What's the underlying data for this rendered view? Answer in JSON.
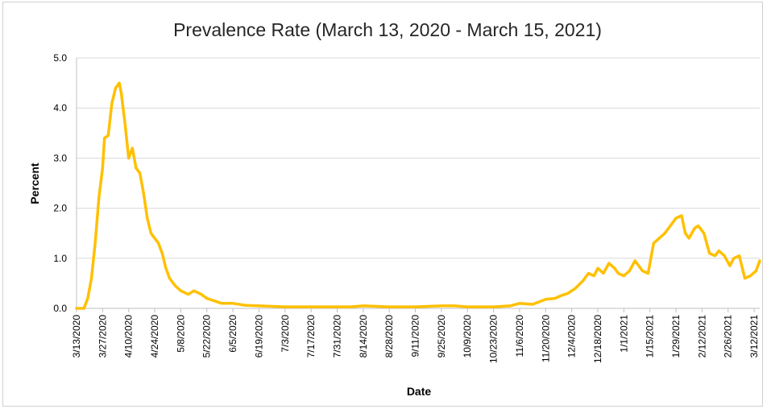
{
  "chart_data": {
    "type": "line",
    "title": "Prevalence Rate (March 13, 2020 - March 15, 2021)",
    "xlabel": "Date",
    "ylabel": "Percent",
    "ylim": [
      0,
      5
    ],
    "yticks": [
      "0.0",
      "1.0",
      "2.0",
      "3.0",
      "4.0",
      "5.0"
    ],
    "grid": true,
    "line_color": "#FFC000",
    "xticks": [
      "3/13/2020",
      "3/27/2020",
      "4/10/2020",
      "4/24/2020",
      "5/8/2020",
      "5/22/2020",
      "6/5/2020",
      "6/19/2020",
      "7/3/2020",
      "7/17/2020",
      "7/31/2020",
      "8/14/2020",
      "8/28/2020",
      "9/11/2020",
      "9/25/2020",
      "10/9/2020",
      "10/23/2020",
      "11/6/2020",
      "11/20/2020",
      "12/4/2020",
      "12/18/2020",
      "1/1/2021",
      "1/15/2021",
      "1/29/2021",
      "2/12/2021",
      "2/26/2021",
      "3/12/2021"
    ],
    "x": [
      "2020-03-13",
      "2020-03-17",
      "2020-03-19",
      "2020-03-21",
      "2020-03-23",
      "2020-03-25",
      "2020-03-27",
      "2020-03-28",
      "2020-03-30",
      "2020-04-01",
      "2020-04-03",
      "2020-04-05",
      "2020-04-06",
      "2020-04-07",
      "2020-04-08",
      "2020-04-10",
      "2020-04-12",
      "2020-04-14",
      "2020-04-16",
      "2020-04-18",
      "2020-04-20",
      "2020-04-22",
      "2020-04-24",
      "2020-04-26",
      "2020-04-28",
      "2020-04-30",
      "2020-05-02",
      "2020-05-05",
      "2020-05-08",
      "2020-05-12",
      "2020-05-15",
      "2020-05-19",
      "2020-05-22",
      "2020-05-26",
      "2020-05-30",
      "2020-06-05",
      "2020-06-12",
      "2020-06-19",
      "2020-07-03",
      "2020-07-17",
      "2020-07-31",
      "2020-08-07",
      "2020-08-14",
      "2020-08-28",
      "2020-09-11",
      "2020-09-25",
      "2020-10-02",
      "2020-10-09",
      "2020-10-23",
      "2020-11-01",
      "2020-11-06",
      "2020-11-13",
      "2020-11-20",
      "2020-11-25",
      "2020-11-28",
      "2020-12-02",
      "2020-12-06",
      "2020-12-10",
      "2020-12-13",
      "2020-12-16",
      "2020-12-18",
      "2020-12-21",
      "2020-12-24",
      "2020-12-27",
      "2020-12-29",
      "2021-01-01",
      "2021-01-04",
      "2021-01-07",
      "2021-01-11",
      "2021-01-14",
      "2021-01-17",
      "2021-01-20",
      "2021-01-23",
      "2021-01-25",
      "2021-01-27",
      "2021-01-29",
      "2021-02-01",
      "2021-02-03",
      "2021-02-05",
      "2021-02-08",
      "2021-02-10",
      "2021-02-13",
      "2021-02-16",
      "2021-02-19",
      "2021-02-21",
      "2021-02-24",
      "2021-02-27",
      "2021-03-01",
      "2021-03-04",
      "2021-03-07",
      "2021-03-10",
      "2021-03-13",
      "2021-03-15"
    ],
    "values": [
      0.0,
      0.0,
      0.2,
      0.6,
      1.3,
      2.2,
      2.8,
      3.4,
      3.45,
      4.1,
      4.4,
      4.5,
      4.3,
      4.0,
      3.7,
      3.0,
      3.2,
      2.8,
      2.7,
      2.3,
      1.8,
      1.5,
      1.4,
      1.3,
      1.1,
      0.8,
      0.6,
      0.45,
      0.35,
      0.28,
      0.35,
      0.28,
      0.2,
      0.15,
      0.1,
      0.1,
      0.06,
      0.05,
      0.03,
      0.03,
      0.03,
      0.03,
      0.05,
      0.03,
      0.03,
      0.05,
      0.05,
      0.03,
      0.03,
      0.05,
      0.1,
      0.08,
      0.18,
      0.2,
      0.25,
      0.3,
      0.4,
      0.55,
      0.7,
      0.65,
      0.8,
      0.7,
      0.9,
      0.8,
      0.7,
      0.65,
      0.75,
      0.95,
      0.75,
      0.7,
      1.3,
      1.4,
      1.5,
      1.6,
      1.7,
      1.8,
      1.85,
      1.5,
      1.4,
      1.6,
      1.65,
      1.5,
      1.1,
      1.05,
      1.15,
      1.05,
      0.85,
      1.0,
      1.05,
      0.6,
      0.65,
      0.75,
      0.95
    ]
  }
}
